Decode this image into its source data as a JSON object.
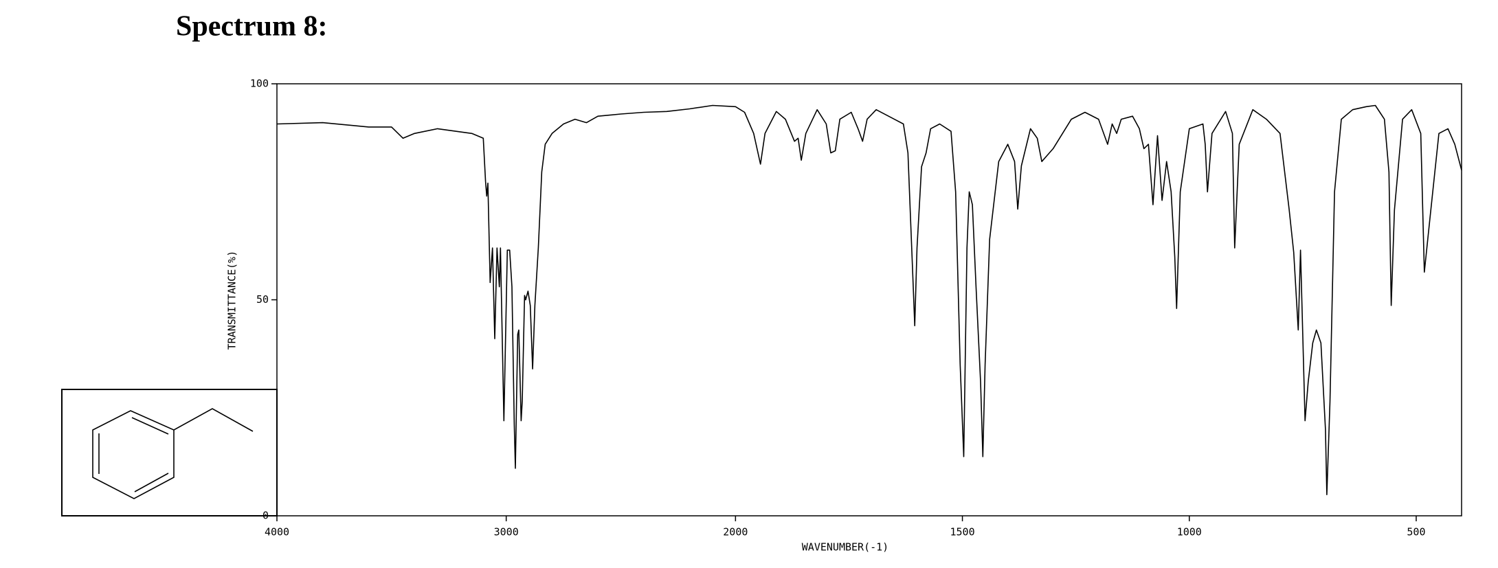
{
  "chart_data": {
    "type": "line",
    "title": "Spectrum 8:",
    "x_label": "WAVENUMBER(-1)",
    "y_label": "TRANSMITTANCE(%)",
    "xlim": [
      4000,
      400
    ],
    "xscale_break": 2000,
    "ylim": [
      0,
      100
    ],
    "xticks": [
      4000,
      3000,
      2000,
      1500,
      1000,
      500
    ],
    "yticks": [
      0,
      50,
      100
    ],
    "color": "#000000",
    "x": [
      4000,
      3800,
      3600,
      3500,
      3450,
      3400,
      3300,
      3150,
      3100,
      3090,
      3085,
      3080,
      3070,
      3060,
      3050,
      3040,
      3030,
      3025,
      3010,
      2995,
      2985,
      2975,
      2965,
      2960,
      2950,
      2945,
      2935,
      2930,
      2920,
      2915,
      2905,
      2895,
      2885,
      2875,
      2860,
      2845,
      2830,
      2800,
      2750,
      2700,
      2650,
      2600,
      2500,
      2400,
      2300,
      2200,
      2100,
      2000,
      1980,
      1960,
      1945,
      1935,
      1910,
      1890,
      1870,
      1862,
      1855,
      1845,
      1820,
      1800,
      1790,
      1780,
      1770,
      1745,
      1730,
      1720,
      1710,
      1690,
      1650,
      1630,
      1620,
      1610,
      1605,
      1600,
      1590,
      1580,
      1570,
      1550,
      1525,
      1515,
      1505,
      1497,
      1490,
      1485,
      1478,
      1470,
      1460,
      1455,
      1450,
      1440,
      1420,
      1400,
      1385,
      1378,
      1370,
      1350,
      1335,
      1325,
      1300,
      1260,
      1230,
      1200,
      1180,
      1170,
      1160,
      1150,
      1125,
      1110,
      1100,
      1090,
      1080,
      1070,
      1060,
      1050,
      1040,
      1032,
      1028,
      1020,
      1000,
      970,
      965,
      960,
      950,
      920,
      905,
      900,
      890,
      860,
      830,
      800,
      780,
      770,
      760,
      755,
      745,
      738,
      728,
      720,
      710,
      700,
      697,
      690,
      680,
      665,
      640,
      610,
      590,
      570,
      560,
      555,
      548,
      530,
      510,
      490,
      482,
      470,
      450,
      430,
      415,
      400
    ],
    "values": [
      90.7,
      91,
      90,
      90,
      87.4,
      88.5,
      89.6,
      88.5,
      87.4,
      77.4,
      74,
      77,
      54,
      62,
      41,
      62,
      53,
      62,
      22,
      61.5,
      61.5,
      53,
      21,
      11,
      42,
      43,
      22,
      26.5,
      51,
      50,
      52,
      48.7,
      34,
      48.7,
      62,
      79.6,
      86,
      88.5,
      90.7,
      91.8,
      91,
      92.5,
      93,
      93.4,
      93.6,
      94.2,
      95,
      94.7,
      93.4,
      88.5,
      81.4,
      88.5,
      93.6,
      91.8,
      86.7,
      87.4,
      82.3,
      88.5,
      94,
      90.7,
      84,
      84.5,
      91.8,
      93.4,
      89.6,
      86.7,
      91.8,
      94,
      91.8,
      90.7,
      84,
      57.5,
      44,
      62,
      80.8,
      84,
      89.6,
      90.7,
      89,
      75,
      35,
      13.7,
      62,
      75,
      72,
      53,
      31,
      13.7,
      35,
      64,
      82,
      86,
      82,
      71,
      81,
      89.6,
      87.4,
      82,
      85,
      91.8,
      93.4,
      91.8,
      86,
      90.7,
      88.5,
      91.8,
      92.5,
      89.6,
      85,
      86,
      72,
      88,
      73,
      82,
      75,
      60,
      48,
      75,
      89.6,
      90.7,
      86,
      75,
      88.5,
      93.6,
      88.5,
      62,
      86,
      94,
      91.8,
      88.5,
      71,
      61,
      43,
      61.5,
      22,
      31,
      40,
      43,
      40,
      20,
      4.9,
      26.5,
      75,
      91.8,
      94,
      94.7,
      95,
      91.8,
      79.6,
      48.7,
      70.8,
      91.8,
      94,
      88.5,
      56.4,
      68.6,
      88.5,
      89.6,
      86,
      80
    ]
  }
}
